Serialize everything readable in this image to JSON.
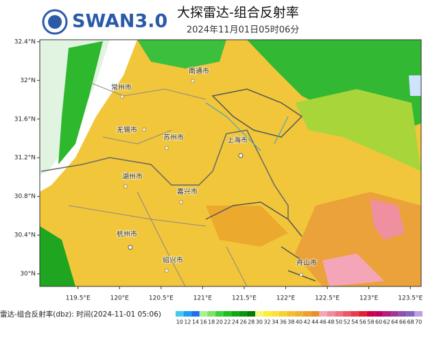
{
  "header": {
    "logo": "SWAN3.0",
    "title": "大探雷达-组合反射率",
    "time": "2024年11月01日05时06分"
  },
  "axes": {
    "latlim": [
      29.87,
      32.42
    ],
    "lonlim": [
      119.04,
      123.63
    ],
    "latticks": [
      {
        "value": 32.4,
        "label": "32.4°N"
      },
      {
        "value": 32,
        "label": "32°N"
      },
      {
        "value": 31.6,
        "label": "31.6°N"
      },
      {
        "value": 31.2,
        "label": "31.2°N"
      },
      {
        "value": 30.8,
        "label": "30.8°N"
      },
      {
        "value": 30.4,
        "label": "30.4°N"
      },
      {
        "value": 30,
        "label": "30°N"
      }
    ],
    "lonticks": [
      {
        "value": 119.5,
        "label": "119.5°E"
      },
      {
        "value": 120,
        "label": "120°E"
      },
      {
        "value": 120.5,
        "label": "120.5°E"
      },
      {
        "value": 121,
        "label": "121°E"
      },
      {
        "value": 121.5,
        "label": "121.5°E"
      },
      {
        "value": 122,
        "label": "122°E"
      },
      {
        "value": 122.5,
        "label": "122.5°E"
      },
      {
        "value": 123,
        "label": "123°E"
      },
      {
        "value": 123.5,
        "label": "123.5°E"
      }
    ]
  },
  "cities": [
    "南通市",
    "常州市",
    "无锡市",
    "苏州市",
    "上海市",
    "湖州市",
    "嘉兴市",
    "杭州市",
    "绍兴市",
    "舟山市"
  ],
  "legend": {
    "caption": "雷达-组合反射率(dbz): 时间(2024-11-01 05:06)",
    "levels": [
      10,
      12,
      14,
      16,
      18,
      20,
      22,
      24,
      26,
      28,
      30,
      32,
      34,
      36,
      38,
      40,
      42,
      44,
      46,
      48,
      50,
      52,
      54,
      56,
      58,
      60,
      62,
      64,
      66,
      68,
      70
    ],
    "colors": [
      "#44c8f0",
      "#1e9ef0",
      "#1e6ef0",
      "#a6f28f",
      "#7fe06a",
      "#3dd13d",
      "#1fbf1f",
      "#12a812",
      "#0a960a",
      "#067a06",
      "#f5f57a",
      "#ffee33",
      "#fde040",
      "#f8d030",
      "#f5bf30",
      "#f0b030",
      "#eda030",
      "#e89030",
      "#f4a6b8",
      "#f08c9c",
      "#ed7282",
      "#ea5866",
      "#e63e4e",
      "#e0202e",
      "#d00040",
      "#c00060",
      "#b0207c",
      "#a03898",
      "#9050b0",
      "#8068c0",
      "#c0a0e0"
    ]
  }
}
